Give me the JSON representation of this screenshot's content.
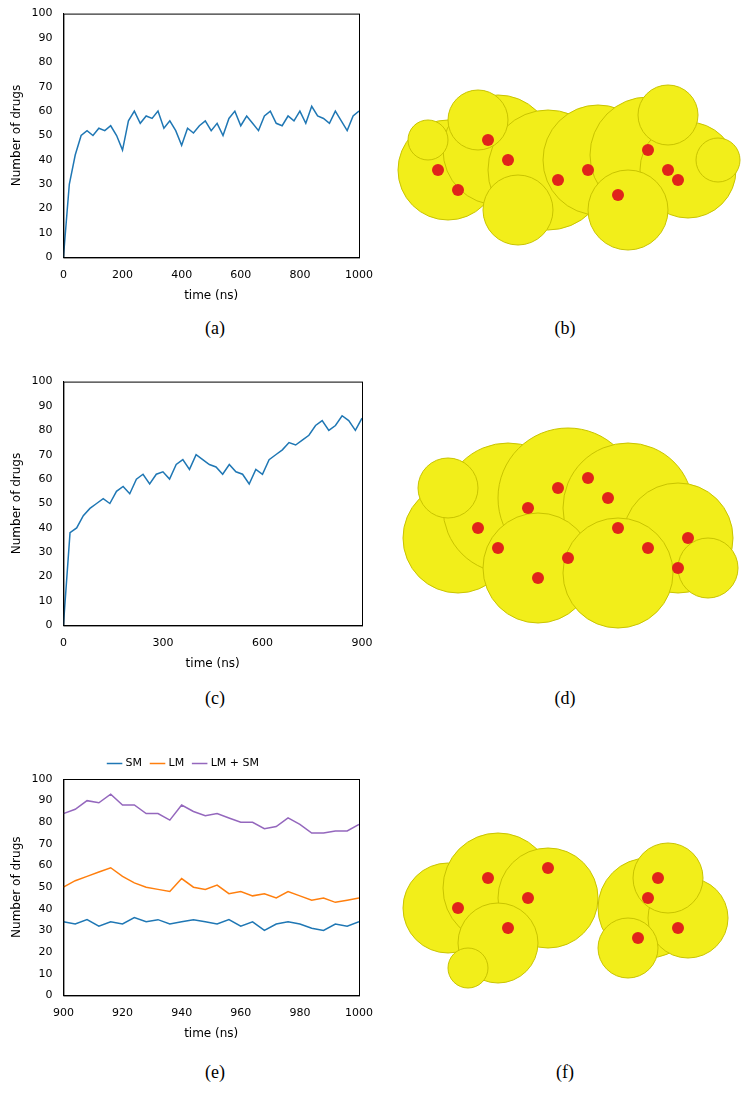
{
  "chart_data": [
    {
      "type": "line",
      "label": "(a)",
      "x_label": "time (ns)",
      "y_label": "Number of drugs",
      "x": [
        0,
        20,
        40,
        60,
        80,
        100,
        120,
        140,
        160,
        180,
        200,
        220,
        240,
        260,
        280,
        300,
        320,
        340,
        360,
        380,
        400,
        420,
        440,
        460,
        480,
        500,
        520,
        540,
        560,
        580,
        600,
        620,
        640,
        660,
        680,
        700,
        720,
        740,
        760,
        780,
        800,
        820,
        840,
        860,
        880,
        900,
        920,
        940,
        960,
        980,
        1000
      ],
      "values": [
        0,
        30,
        42,
        50,
        52,
        50,
        53,
        52,
        54,
        50,
        44,
        56,
        60,
        55,
        58,
        57,
        60,
        53,
        56,
        52,
        46,
        53,
        51,
        54,
        56,
        52,
        55,
        50,
        57,
        60,
        54,
        58,
        55,
        52,
        58,
        60,
        55,
        54,
        58,
        56,
        60,
        55,
        62,
        58,
        57,
        55,
        60,
        56,
        52,
        58,
        60
      ],
      "color": "#1f77b4",
      "xlim": [
        0,
        1000
      ],
      "xticks": [
        0,
        200,
        400,
        600,
        800,
        1000
      ],
      "ylim": [
        0,
        100
      ],
      "yticks": [
        0,
        10,
        20,
        30,
        40,
        50,
        60,
        70,
        80,
        90,
        100
      ],
      "grid": false
    },
    {
      "type": "line",
      "label": "(c)",
      "x_label": "time (ns)",
      "y_label": "Number of drugs",
      "x": [
        0,
        20,
        40,
        60,
        80,
        100,
        120,
        140,
        160,
        180,
        200,
        220,
        240,
        260,
        280,
        300,
        320,
        340,
        360,
        380,
        400,
        420,
        440,
        460,
        480,
        500,
        520,
        540,
        560,
        580,
        600,
        620,
        640,
        660,
        680,
        700,
        720,
        740,
        760,
        780,
        800,
        820,
        840,
        860,
        880,
        900
      ],
      "values": [
        0,
        38,
        40,
        45,
        48,
        50,
        52,
        50,
        55,
        57,
        54,
        60,
        62,
        58,
        62,
        63,
        60,
        66,
        68,
        64,
        70,
        68,
        66,
        65,
        62,
        66,
        63,
        62,
        58,
        64,
        62,
        68,
        70,
        72,
        75,
        74,
        76,
        78,
        82,
        84,
        80,
        82,
        86,
        84,
        80,
        85
      ],
      "color": "#1f77b4",
      "xlim": [
        0,
        900
      ],
      "xticks": [
        0,
        300,
        600,
        900
      ],
      "ylim": [
        0,
        100
      ],
      "yticks": [
        0,
        10,
        20,
        30,
        40,
        50,
        60,
        70,
        80,
        90,
        100
      ],
      "grid": false
    },
    {
      "type": "line",
      "label": "(e)",
      "x_label": "time (ns)",
      "y_label": "Number of drugs",
      "x": [
        900,
        904,
        908,
        912,
        916,
        920,
        924,
        928,
        932,
        936,
        940,
        944,
        948,
        952,
        956,
        960,
        964,
        968,
        972,
        976,
        980,
        984,
        988,
        992,
        996,
        1000
      ],
      "series": [
        {
          "name": "SM",
          "color": "#1f77b4",
          "values": [
            34,
            33,
            35,
            32,
            34,
            33,
            36,
            34,
            35,
            33,
            34,
            35,
            34,
            33,
            35,
            32,
            34,
            30,
            33,
            34,
            33,
            31,
            30,
            33,
            32,
            34
          ]
        },
        {
          "name": "LM",
          "color": "#ff7f0e",
          "values": [
            50,
            53,
            55,
            57,
            59,
            55,
            52,
            50,
            49,
            48,
            54,
            50,
            49,
            51,
            47,
            48,
            46,
            47,
            45,
            48,
            46,
            44,
            45,
            43,
            44,
            45
          ]
        },
        {
          "name": "LM + SM",
          "color": "#9467bd",
          "values": [
            84,
            86,
            90,
            89,
            93,
            88,
            88,
            84,
            84,
            81,
            88,
            85,
            83,
            84,
            82,
            80,
            80,
            77,
            78,
            82,
            79,
            75,
            75,
            76,
            76,
            79
          ]
        }
      ],
      "legend": "top",
      "xlim": [
        900,
        1000
      ],
      "xticks": [
        900,
        920,
        940,
        960,
        980,
        1000
      ],
      "ylim": [
        0,
        100
      ],
      "yticks": [
        0,
        10,
        20,
        30,
        40,
        50,
        60,
        70,
        80,
        90,
        100
      ],
      "grid": false
    }
  ],
  "images": [
    {
      "label": "(b)"
    },
    {
      "label": "(d)"
    },
    {
      "label": "(f)"
    }
  ]
}
